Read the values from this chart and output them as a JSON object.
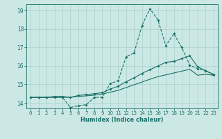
{
  "title": "",
  "xlabel": "Humidex (Indice chaleur)",
  "bg_color": "#cce8e4",
  "grid_color": "#add4cf",
  "line_color": "#1a7068",
  "xlim": [
    -0.5,
    23.5
  ],
  "ylim": [
    13.7,
    19.35
  ],
  "xticks": [
    0,
    1,
    2,
    3,
    4,
    5,
    6,
    7,
    8,
    9,
    10,
    11,
    12,
    13,
    14,
    15,
    16,
    17,
    18,
    19,
    20,
    21,
    22,
    23
  ],
  "yticks": [
    14,
    15,
    16,
    17,
    18,
    19
  ],
  "line1_x": [
    0,
    1,
    2,
    3,
    4,
    5,
    6,
    7,
    8,
    9,
    10,
    11,
    12,
    13,
    14,
    15,
    16,
    17,
    18,
    19,
    20,
    21,
    22,
    23
  ],
  "line1_y": [
    14.3,
    14.3,
    14.3,
    14.3,
    14.3,
    13.75,
    13.85,
    13.9,
    14.3,
    14.3,
    15.05,
    15.2,
    16.5,
    16.7,
    18.2,
    19.1,
    18.5,
    17.1,
    17.75,
    17.0,
    16.05,
    15.85,
    15.75,
    15.5
  ],
  "line2_x": [
    0,
    1,
    2,
    3,
    4,
    5,
    6,
    7,
    8,
    9,
    10,
    11,
    12,
    13,
    14,
    15,
    16,
    17,
    18,
    19,
    20,
    21,
    22,
    23
  ],
  "line2_y": [
    14.3,
    14.3,
    14.3,
    14.35,
    14.35,
    14.3,
    14.4,
    14.45,
    14.5,
    14.55,
    14.75,
    14.9,
    15.15,
    15.35,
    15.6,
    15.8,
    16.0,
    16.2,
    16.25,
    16.4,
    16.55,
    15.95,
    15.75,
    15.55
  ],
  "line3_x": [
    0,
    1,
    2,
    3,
    4,
    5,
    6,
    7,
    8,
    9,
    10,
    11,
    12,
    13,
    14,
    15,
    16,
    17,
    18,
    19,
    20,
    21,
    22,
    23
  ],
  "line3_y": [
    14.3,
    14.3,
    14.3,
    14.3,
    14.3,
    14.3,
    14.35,
    14.38,
    14.42,
    14.48,
    14.58,
    14.68,
    14.83,
    14.98,
    15.13,
    15.28,
    15.42,
    15.52,
    15.62,
    15.72,
    15.82,
    15.5,
    15.55,
    15.5
  ]
}
